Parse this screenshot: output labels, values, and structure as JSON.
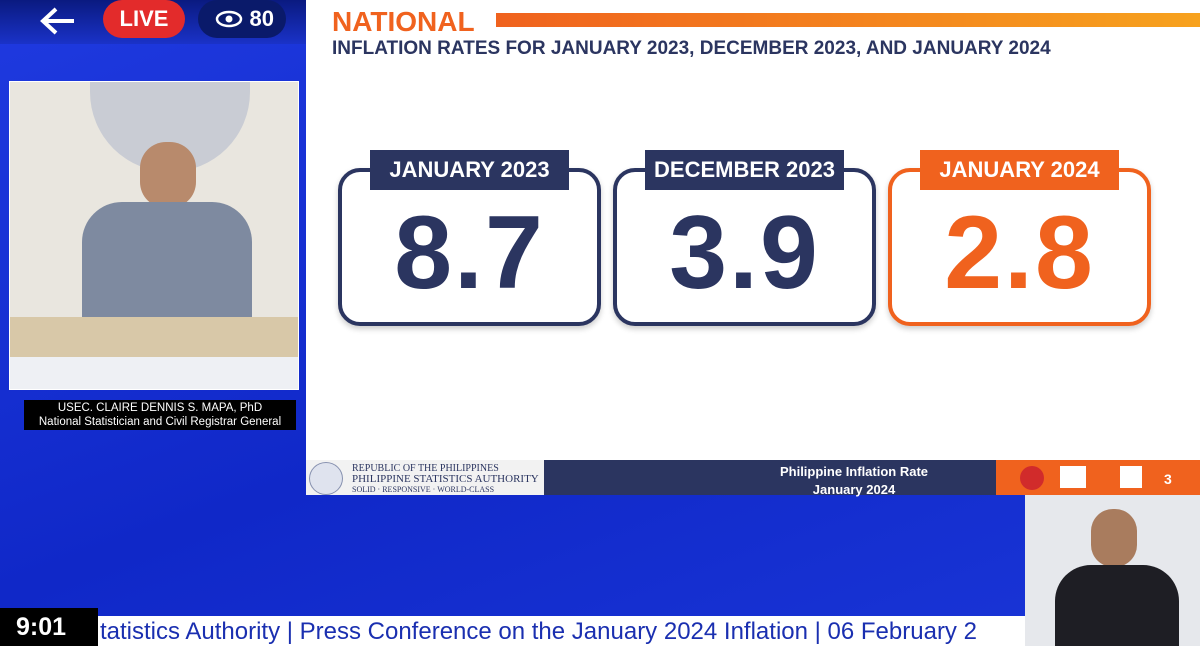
{
  "stream": {
    "live": "LIVE",
    "viewers": 80,
    "clock": "9:01",
    "ticker": "tatistics Authority | Press Conference on the January 2024 Inflation | 06 February 2"
  },
  "speaker": {
    "name": "USEC. CLAIRE DENNIS S. MAPA, PhD",
    "role": "National Statistician and Civil Registrar General"
  },
  "slide": {
    "heading": "NATIONAL",
    "subtitle": "INFLATION RATES FOR JANUARY 2023, DECEMBER 2023, AND JANUARY 2024",
    "cards": [
      {
        "label": "JANUARY 2023",
        "value": 8.7
      },
      {
        "label": "DECEMBER 2023",
        "value": 3.9
      },
      {
        "label": "JANUARY 2024",
        "value": 2.8
      }
    ],
    "footer": {
      "org_line1": "REPUBLIC OF THE PHILIPPINES",
      "org_line2": "PHILIPPINE STATISTICS AUTHORITY",
      "org_line3": "SOLID · RESPONSIVE · WORLD-CLASS",
      "title": "Philippine Inflation Rate",
      "period": "January 2024",
      "page": 3
    }
  }
}
